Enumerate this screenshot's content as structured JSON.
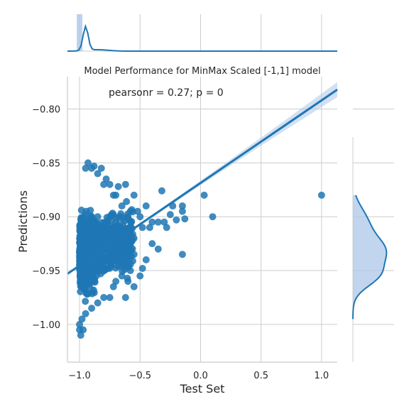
{
  "chart_data": {
    "type": "scatter",
    "title": "Model Performance for MinMax Scaled [-1,1] model",
    "annotation": "pearsonr = 0.27; p = 0",
    "xlabel": "Test Set",
    "ylabel": "Predictions",
    "xlim": [
      -1.1,
      1.13
    ],
    "ylim": [
      -1.035,
      -0.77
    ],
    "x_ticks": [
      -1.0,
      -0.5,
      0.0,
      0.5,
      1.0
    ],
    "x_tick_labels": [
      "−1.0",
      "−0.5",
      "0.0",
      "0.5",
      "1.0"
    ],
    "y_ticks": [
      -1.0,
      -0.95,
      -0.9,
      -0.85,
      -0.8
    ],
    "y_tick_labels": [
      "−1.00",
      "−0.95",
      "−0.90",
      "−0.85",
      "−0.80"
    ],
    "grid": true,
    "colors": {
      "points": "#1f77b4",
      "line": "#1f77b4",
      "ci_band": "#aec7e8",
      "grid": "#cccccc",
      "axis": "#cccccc"
    },
    "regression": {
      "x": [
        -1.1,
        1.13
      ],
      "y": [
        -0.953,
        -0.782
      ]
    },
    "points": [
      [
        1.0,
        -0.88
      ],
      [
        0.1,
        -0.9
      ],
      [
        0.03,
        -0.88
      ],
      [
        -0.15,
        -0.935
      ],
      [
        -0.15,
        -0.89
      ],
      [
        -0.13,
        -0.902
      ],
      [
        -0.15,
        -0.895
      ],
      [
        -0.32,
        -0.876
      ],
      [
        -0.25,
        -0.898
      ],
      [
        -0.3,
        -0.905
      ],
      [
        -0.2,
        -0.903
      ],
      [
        -0.23,
        -0.89
      ],
      [
        -0.28,
        -0.91
      ],
      [
        -0.55,
        -0.935
      ],
      [
        -0.55,
        -0.92
      ],
      [
        -0.58,
        -0.895
      ],
      [
        -0.6,
        -0.915
      ],
      [
        -0.52,
        -0.895
      ],
      [
        -0.65,
        -0.89
      ],
      [
        -0.68,
        -0.872
      ],
      [
        -0.62,
        -0.87
      ],
      [
        -0.7,
        -0.88
      ],
      [
        -0.72,
        -0.965
      ],
      [
        -0.75,
        -0.975
      ],
      [
        -0.62,
        -0.975
      ],
      [
        -0.5,
        -0.9
      ],
      [
        -0.45,
        -0.89
      ],
      [
        -0.48,
        -0.91
      ],
      [
        -0.4,
        -0.905
      ],
      [
        -0.42,
        -0.91
      ],
      [
        -0.35,
        -0.905
      ],
      [
        -0.65,
        -0.955
      ],
      [
        -0.6,
        -0.96
      ],
      [
        -0.55,
        -0.965
      ],
      [
        -0.5,
        -0.955
      ],
      [
        -0.48,
        -0.948
      ],
      [
        -0.7,
        -0.96
      ],
      [
        -0.8,
        -0.975
      ],
      [
        -0.85,
        -0.98
      ],
      [
        -0.9,
        -0.985
      ],
      [
        -0.95,
        -0.99
      ],
      [
        -0.85,
        -0.86
      ],
      [
        -0.88,
        -0.853
      ],
      [
        -0.82,
        -0.855
      ],
      [
        -0.9,
        -0.855
      ],
      [
        -0.93,
        -0.85
      ],
      [
        -0.95,
        -0.855
      ],
      [
        -0.75,
        -0.87
      ],
      [
        -0.78,
        -0.865
      ],
      [
        -0.8,
        -0.87
      ],
      [
        -0.72,
        -0.88
      ],
      [
        -1.0,
        -1.0
      ],
      [
        -1.0,
        -1.005
      ],
      [
        -0.99,
        -1.01
      ],
      [
        -0.97,
        -1.005
      ],
      [
        -0.98,
        -0.995
      ],
      [
        -0.4,
        -0.925
      ],
      [
        -0.45,
        -0.94
      ],
      [
        -0.35,
        -0.93
      ],
      [
        -0.58,
        -0.95
      ],
      [
        -0.62,
        -0.945
      ],
      [
        -0.9,
        -0.96
      ],
      [
        -0.85,
        -0.95
      ],
      [
        -0.8,
        -0.92
      ],
      [
        -0.75,
        -0.9
      ],
      [
        -0.7,
        -0.93
      ],
      [
        -0.85,
        -0.9
      ],
      [
        -0.9,
        -0.9
      ],
      [
        -0.6,
        -0.9
      ],
      [
        -0.55,
        -0.88
      ]
    ],
    "x_marginal": "histogram with KDE along Test Set, sharp peak near -1.0",
    "y_marginal": "histogram with KDE along Predictions, peak near -0.93"
  }
}
